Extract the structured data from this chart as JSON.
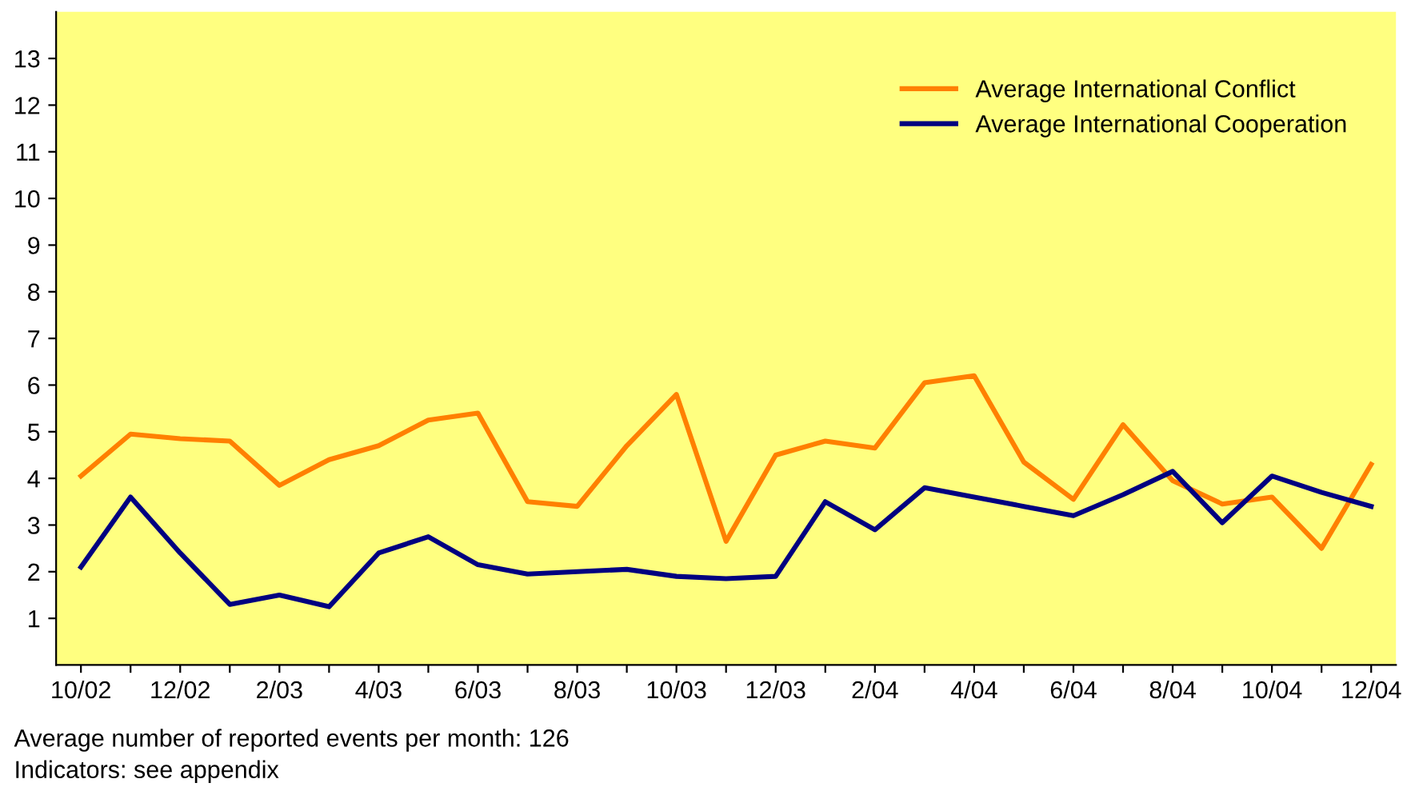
{
  "chart_data": {
    "type": "line",
    "categories": [
      "10/02",
      null,
      "12/02",
      null,
      "2/03",
      null,
      "4/03",
      null,
      "6/03",
      null,
      "8/03",
      null,
      "10/03",
      null,
      "12/03",
      null,
      "2/04",
      null,
      "4/04",
      null,
      "6/04",
      null,
      "8/04",
      null,
      "10/04",
      null,
      "12/04"
    ],
    "series": [
      {
        "name": "Average International Conflict",
        "color": "#ff8000",
        "values": [
          4.05,
          4.95,
          4.85,
          4.8,
          3.85,
          4.4,
          4.7,
          5.25,
          5.4,
          3.5,
          3.4,
          4.7,
          5.8,
          2.65,
          4.5,
          4.8,
          4.65,
          6.05,
          6.2,
          4.35,
          3.55,
          5.15,
          3.95,
          3.45,
          3.6,
          2.5,
          4.3
        ]
      },
      {
        "name": "Average International Cooperation",
        "color": "#000080",
        "values": [
          2.1,
          3.6,
          2.4,
          1.3,
          1.5,
          1.25,
          2.4,
          2.75,
          2.15,
          1.95,
          2.0,
          2.05,
          1.9,
          1.85,
          1.9,
          3.5,
          2.9,
          3.8,
          3.6,
          3.4,
          3.2,
          3.65,
          4.15,
          3.05,
          4.05,
          3.7,
          3.4
        ]
      }
    ],
    "ylim": [
      0,
      14
    ],
    "yticks": [
      1,
      2,
      3,
      4,
      5,
      6,
      7,
      8,
      9,
      10,
      11,
      12,
      13
    ],
    "grid": false,
    "legend": "top right",
    "marker": "none",
    "line_style": "solid",
    "annotations": [
      "Average number of reported events per month: 126",
      "Indicators: see appendix"
    ]
  }
}
